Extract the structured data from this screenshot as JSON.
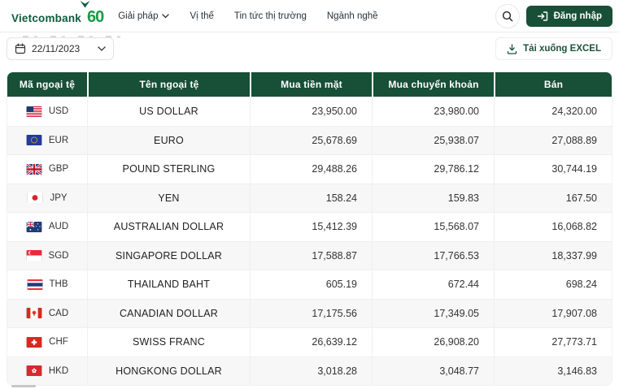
{
  "brand": {
    "logo_text": "Vietcombank",
    "anniversary_logo": "60",
    "colors": {
      "dark_green": "#184f37",
      "brand_green": "#0d5c3f",
      "accent_green": "#169c46",
      "link_green": "#1b5439"
    }
  },
  "nav": {
    "items": [
      {
        "label": "Giải pháp",
        "has_dropdown": true
      },
      {
        "label": "Vị thế",
        "has_dropdown": false
      },
      {
        "label": "Tin tức thị trường",
        "has_dropdown": false
      },
      {
        "label": "Ngành nghề",
        "has_dropdown": false
      }
    ],
    "login_label": "Đăng nhập"
  },
  "toolbar": {
    "date_value": "22/11/2023",
    "download_label": "Tải xuống EXCEL"
  },
  "icons": {
    "search-icon": "magnifier",
    "login-icon": "arrow-into-door",
    "calendar-icon": "calendar",
    "chevron-down-icon": "chevron-down",
    "download-icon": "arrow-down-to-tray"
  },
  "table": {
    "headers": [
      "Mã ngoại tệ",
      "Tên ngoại tệ",
      "Mua tiền mặt",
      "Mua chuyển khoản",
      "Bán"
    ],
    "rows": [
      {
        "flag": "us",
        "code": "USD",
        "name": "US DOLLAR",
        "cash": "23,950.00",
        "transfer": "23,980.00",
        "sell": "24,320.00"
      },
      {
        "flag": "eu",
        "code": "EUR",
        "name": "EURO",
        "cash": "25,678.69",
        "transfer": "25,938.07",
        "sell": "27,088.89"
      },
      {
        "flag": "gb",
        "code": "GBP",
        "name": "POUND STERLING",
        "cash": "29,488.26",
        "transfer": "29,786.12",
        "sell": "30,744.19"
      },
      {
        "flag": "jp",
        "code": "JPY",
        "name": "YEN",
        "cash": "158.24",
        "transfer": "159.83",
        "sell": "167.50"
      },
      {
        "flag": "au",
        "code": "AUD",
        "name": "AUSTRALIAN DOLLAR",
        "cash": "15,412.39",
        "transfer": "15,568.07",
        "sell": "16,068.82"
      },
      {
        "flag": "sg",
        "code": "SGD",
        "name": "SINGAPORE DOLLAR",
        "cash": "17,588.87",
        "transfer": "17,766.53",
        "sell": "18,337.99"
      },
      {
        "flag": "th",
        "code": "THB",
        "name": "THAILAND BAHT",
        "cash": "605.19",
        "transfer": "672.44",
        "sell": "698.24"
      },
      {
        "flag": "ca",
        "code": "CAD",
        "name": "CANADIAN DOLLAR",
        "cash": "17,175.56",
        "transfer": "17,349.05",
        "sell": "17,907.08"
      },
      {
        "flag": "ch",
        "code": "CHF",
        "name": "SWISS FRANC",
        "cash": "26,639.12",
        "transfer": "26,908.20",
        "sell": "27,773.71"
      },
      {
        "flag": "hk",
        "code": "HKD",
        "name": "HONGKONG DOLLAR",
        "cash": "3,018.28",
        "transfer": "3,048.77",
        "sell": "3,146.83"
      }
    ]
  }
}
